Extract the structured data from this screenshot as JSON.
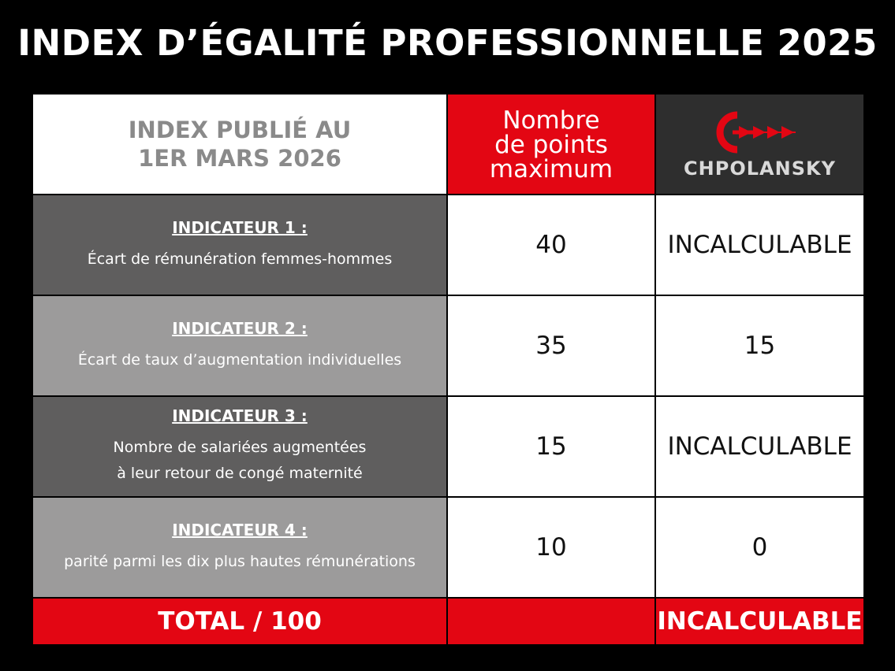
{
  "title": "INDEX D’ÉGALITÉ PROFESSIONNELLE 2025",
  "header": {
    "published_line1": "INDEX PUBLIÉ AU",
    "published_line2": "1ER MARS 2026",
    "max_points_line1": "Nombre",
    "max_points_line2": "de points",
    "max_points_line3": "maximum",
    "brand": "CHPOLANSKY"
  },
  "rows": [
    {
      "title": "INDICATEUR 1 :",
      "desc_line1": "Écart de rémunération femmes-hommes",
      "max": "40",
      "value": "INCALCULABLE"
    },
    {
      "title": "INDICATEUR 2 :",
      "desc_line1": "Écart de taux d’augmentation individuelles",
      "max": "35",
      "value": "15"
    },
    {
      "title": "INDICATEUR 3 :",
      "desc_line1": "Nombre de salariées augmentées",
      "desc_line2": "à leur retour de congé maternité",
      "max": "15",
      "value": "INCALCULABLE"
    },
    {
      "title": "INDICATEUR 4 :",
      "desc_line1": "parité parmi les dix plus hautes rémunérations",
      "max": "10",
      "value": "0"
    }
  ],
  "total": {
    "label": "TOTAL / 100",
    "max": "",
    "value": "INCALCULABLE"
  },
  "colors": {
    "background": "#000000",
    "accent_red": "#e30613",
    "dark_row": "#5f5e5e",
    "light_row": "#9c9b9b",
    "logo_bg": "#2e2e2e"
  },
  "icons": {
    "logo": "chpolansky-c-arrows-logo"
  }
}
